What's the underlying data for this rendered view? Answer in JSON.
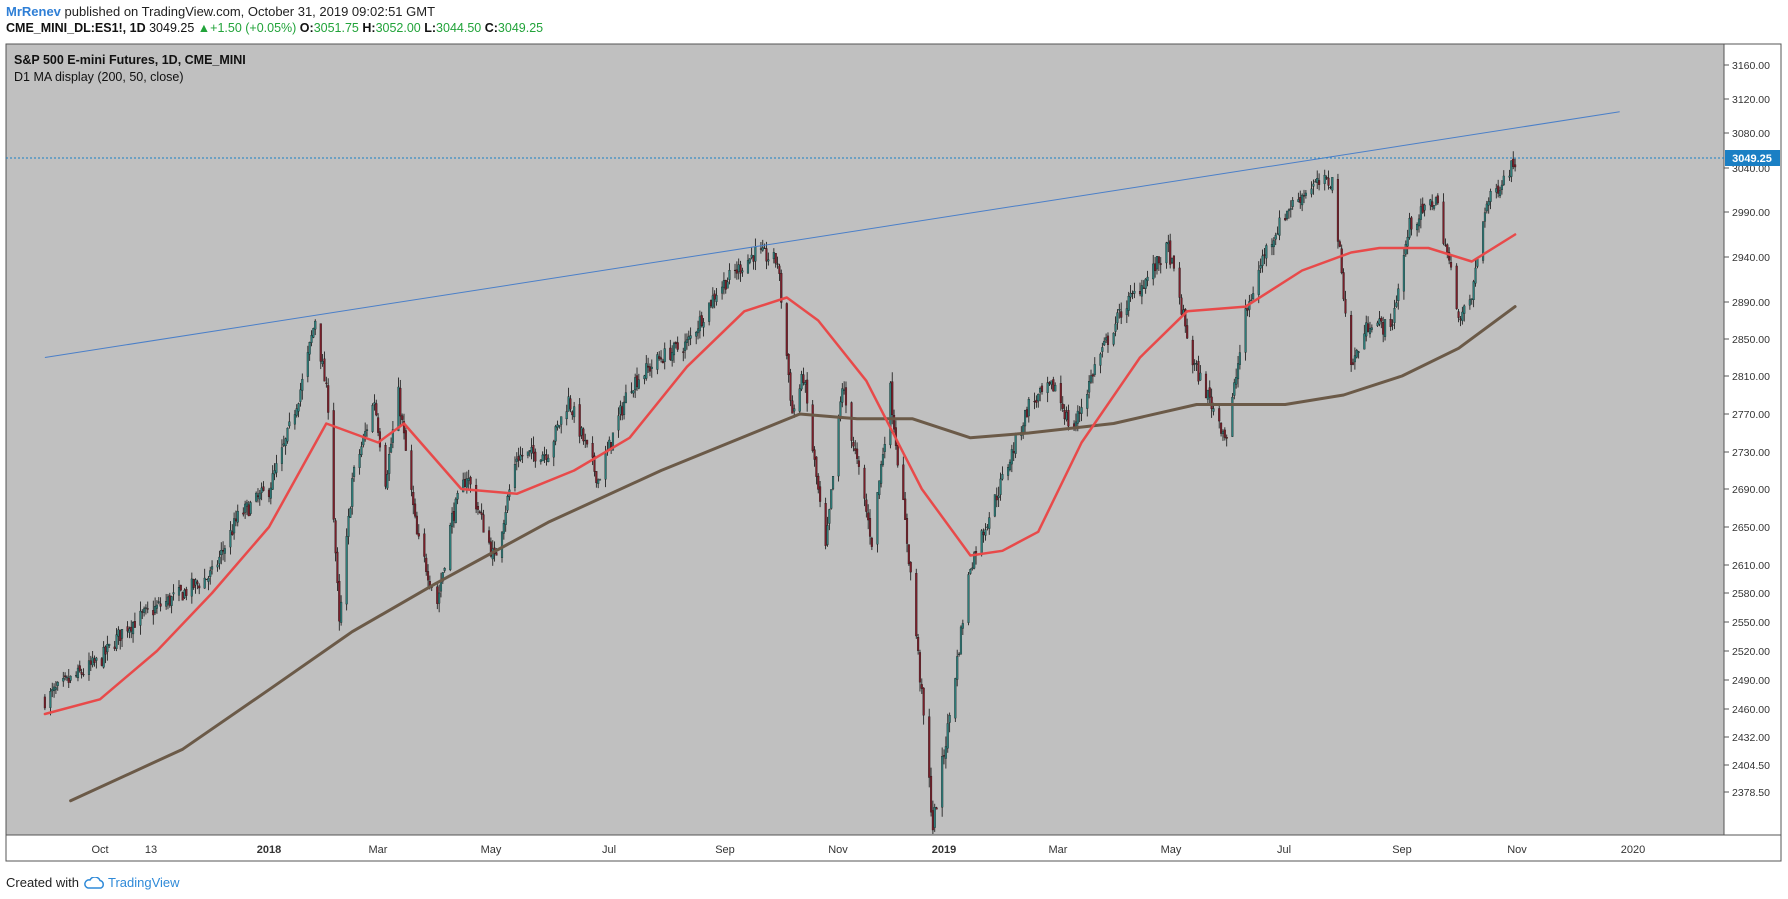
{
  "header": {
    "user": "MrRenev",
    "published_text": "published on TradingView.com, October 31, 2019 09:02:51 GMT",
    "symbol": "CME_MINI_DL:ES1!, 1D",
    "last": "3049.25",
    "change": "+1.50 (+0.05%)",
    "o_label": "O:",
    "o": "3051.75",
    "h_label": "H:",
    "h": "3052.00",
    "l_label": "L:",
    "l": "3044.50",
    "c_label": "C:",
    "c": "3049.25"
  },
  "footer": {
    "created_with": "Created with",
    "brand": "TradingView"
  },
  "colors": {
    "background": "#c0c0c0",
    "candle_up": "#2e7d7a",
    "candle_down": "#7a1f2a",
    "ma50": "#e84a4a",
    "ma200": "#6b5a48",
    "trendline": "#4a7fc8",
    "price_tag": "#1a7fc4"
  },
  "chart_data": {
    "type": "candlestick",
    "title": "S&P 500 E-mini Futures, 1D, CME_MINI",
    "subtitle": "D1 MA display (200, 50, close)",
    "y_ticks": [
      "3160.00",
      "3120.00",
      "3080.00",
      "3040.00",
      "2990.00",
      "2940.00",
      "2890.00",
      "2850.00",
      "2810.00",
      "2770.00",
      "2730.00",
      "2690.00",
      "2650.00",
      "2610.00",
      "2580.00",
      "2550.00",
      "2520.00",
      "2490.00",
      "2460.00",
      "2432.00",
      "2404.50",
      "2378.50"
    ],
    "x_ticks": [
      "Oct",
      "13",
      "2018",
      "Mar",
      "May",
      "Jul",
      "Sep",
      "Nov",
      "2019",
      "Mar",
      "May",
      "Jul",
      "Sep",
      "Nov",
      "2020"
    ],
    "last_price_label": "3049.25",
    "last_price": 3049.25,
    "price_path": [
      [
        "2017-09-01",
        2470
      ],
      [
        "2017-09-15",
        2490
      ],
      [
        "2017-10-01",
        2510
      ],
      [
        "2017-10-15",
        2545
      ],
      [
        "2017-11-01",
        2565
      ],
      [
        "2017-11-15",
        2580
      ],
      [
        "2017-12-01",
        2600
      ],
      [
        "2017-12-15",
        2660
      ],
      [
        "2018-01-01",
        2690
      ],
      [
        "2018-01-10",
        2740
      ],
      [
        "2018-01-20",
        2810
      ],
      [
        "2018-01-26",
        2872
      ],
      [
        "2018-02-02",
        2780
      ],
      [
        "2018-02-08",
        2545
      ],
      [
        "2018-02-15",
        2700
      ],
      [
        "2018-02-27",
        2785
      ],
      [
        "2018-03-05",
        2700
      ],
      [
        "2018-03-12",
        2790
      ],
      [
        "2018-03-22",
        2640
      ],
      [
        "2018-04-02",
        2570
      ],
      [
        "2018-04-10",
        2660
      ],
      [
        "2018-04-18",
        2705
      ],
      [
        "2018-05-03",
        2615
      ],
      [
        "2018-05-15",
        2725
      ],
      [
        "2018-06-01",
        2730
      ],
      [
        "2018-06-12",
        2785
      ],
      [
        "2018-06-28",
        2700
      ],
      [
        "2018-07-15",
        2800
      ],
      [
        "2018-08-01",
        2830
      ],
      [
        "2018-08-15",
        2845
      ],
      [
        "2018-09-01",
        2905
      ],
      [
        "2018-09-21",
        2945
      ],
      [
        "2018-10-03",
        2935
      ],
      [
        "2018-10-11",
        2770
      ],
      [
        "2018-10-17",
        2810
      ],
      [
        "2018-10-29",
        2625
      ],
      [
        "2018-11-07",
        2800
      ],
      [
        "2018-11-23",
        2635
      ],
      [
        "2018-12-03",
        2795
      ],
      [
        "2018-12-14",
        2600
      ],
      [
        "2018-12-26",
        2345
      ],
      [
        "2019-01-03",
        2440
      ],
      [
        "2019-01-15",
        2610
      ],
      [
        "2019-02-01",
        2700
      ],
      [
        "2019-02-15",
        2780
      ],
      [
        "2019-03-01",
        2800
      ],
      [
        "2019-03-10",
        2750
      ],
      [
        "2019-03-22",
        2820
      ],
      [
        "2019-04-05",
        2880
      ],
      [
        "2019-04-20",
        2920
      ],
      [
        "2019-04-30",
        2950
      ],
      [
        "2019-05-13",
        2825
      ],
      [
        "2019-05-31",
        2745
      ],
      [
        "2019-06-10",
        2875
      ],
      [
        "2019-06-20",
        2945
      ],
      [
        "2019-07-03",
        2995
      ],
      [
        "2019-07-15",
        3020
      ],
      [
        "2019-07-26",
        3025
      ],
      [
        "2019-08-05",
        2820
      ],
      [
        "2019-08-15",
        2870
      ],
      [
        "2019-08-26",
        2860
      ],
      [
        "2019-09-05",
        2975
      ],
      [
        "2019-09-19",
        3005
      ],
      [
        "2019-10-02",
        2870
      ],
      [
        "2019-10-08",
        2895
      ],
      [
        "2019-10-15",
        2995
      ],
      [
        "2019-10-31",
        3049.25
      ]
    ],
    "ma50_path": [
      [
        "2017-09-01",
        2455
      ],
      [
        "2017-10-01",
        2470
      ],
      [
        "2017-11-01",
        2520
      ],
      [
        "2017-12-01",
        2580
      ],
      [
        "2018-01-01",
        2650
      ],
      [
        "2018-02-01",
        2760
      ],
      [
        "2018-03-01",
        2740
      ],
      [
        "2018-03-15",
        2760
      ],
      [
        "2018-04-15",
        2690
      ],
      [
        "2018-05-15",
        2685
      ],
      [
        "2018-06-15",
        2710
      ],
      [
        "2018-07-15",
        2745
      ],
      [
        "2018-08-15",
        2820
      ],
      [
        "2018-09-15",
        2880
      ],
      [
        "2018-10-08",
        2895
      ],
      [
        "2018-10-25",
        2870
      ],
      [
        "2018-11-20",
        2805
      ],
      [
        "2018-12-20",
        2690
      ],
      [
        "2019-01-15",
        2620
      ],
      [
        "2019-02-01",
        2625
      ],
      [
        "2019-02-20",
        2645
      ],
      [
        "2019-03-15",
        2740
      ],
      [
        "2019-04-15",
        2830
      ],
      [
        "2019-05-10",
        2880
      ],
      [
        "2019-06-10",
        2885
      ],
      [
        "2019-07-10",
        2925
      ],
      [
        "2019-08-05",
        2945
      ],
      [
        "2019-08-20",
        2950
      ],
      [
        "2019-09-15",
        2950
      ],
      [
        "2019-10-08",
        2935
      ],
      [
        "2019-10-31",
        2965
      ]
    ],
    "ma200_path": [
      [
        "2017-09-15",
        2370
      ],
      [
        "2017-11-15",
        2420
      ],
      [
        "2018-01-01",
        2480
      ],
      [
        "2018-02-15",
        2540
      ],
      [
        "2018-04-01",
        2590
      ],
      [
        "2018-06-01",
        2655
      ],
      [
        "2018-08-01",
        2710
      ],
      [
        "2018-10-15",
        2770
      ],
      [
        "2018-11-15",
        2765
      ],
      [
        "2018-12-15",
        2765
      ],
      [
        "2019-01-15",
        2745
      ],
      [
        "2019-02-15",
        2750
      ],
      [
        "2019-04-01",
        2760
      ],
      [
        "2019-05-15",
        2780
      ],
      [
        "2019-07-01",
        2780
      ],
      [
        "2019-08-01",
        2790
      ],
      [
        "2019-09-01",
        2810
      ],
      [
        "2019-10-01",
        2840
      ],
      [
        "2019-10-31",
        2885
      ]
    ],
    "trendline": [
      [
        "2017-09-01",
        2830
      ],
      [
        "2019-12-25",
        3105
      ]
    ]
  }
}
